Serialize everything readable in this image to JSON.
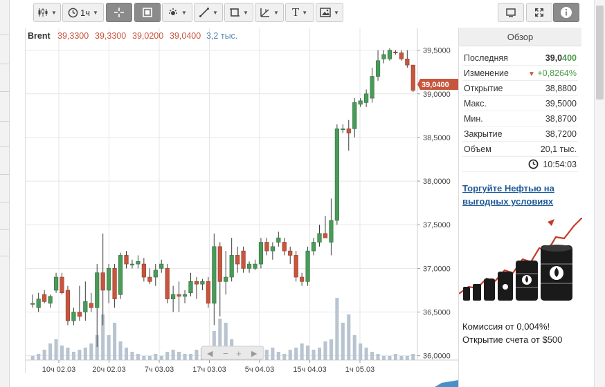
{
  "toolbar": {
    "interval_label": "1ч",
    "text_tool_label": "T"
  },
  "legend": {
    "symbol": "Brent",
    "open": "39,3300",
    "high": "39,3300",
    "low": "39,0200",
    "close": "39,0400",
    "volume": "3,2 тыс."
  },
  "price_axis": {
    "ticks": [
      "39,5000",
      "39,0000",
      "38,5000",
      "38,0000",
      "37,5000",
      "37,0000",
      "36,5000",
      "36,0000"
    ],
    "last_price_label": "39,0400"
  },
  "time_axis": {
    "ticks": [
      "10ч 02.03",
      "20ч 02.03",
      "7ч 03.03",
      "17ч 03.03",
      "5ч 04.03",
      "15ч 04.03",
      "1ч 05.03"
    ]
  },
  "overview": {
    "title": "Обзор",
    "rows": [
      {
        "label": "Последняя",
        "value_main": "39,0",
        "value_accent": "400"
      },
      {
        "label": "Изменение",
        "value": "+0,8264%"
      },
      {
        "label": "Открытие",
        "value": "38,8800"
      },
      {
        "label": "Макс.",
        "value": "39,5000"
      },
      {
        "label": "Мин.",
        "value": "38,8700"
      },
      {
        "label": "Закрытие",
        "value": "38,7200"
      },
      {
        "label": "Объем",
        "value": "20,1 тыс."
      }
    ],
    "time": "10:54:03"
  },
  "promo": {
    "link_text": "Торгуйте Нефтью на выгодных условиях",
    "line1": "Комиссия от 0,004%!",
    "line2": "Открытие счета от $500"
  },
  "colors": {
    "up": "#4a9a5a",
    "down": "#c8553d",
    "grid": "#e6e6e6",
    "accent_link": "#1e5b99"
  },
  "chart_data": {
    "type": "candlestick",
    "title": "Brent",
    "ylim": [
      35.95,
      39.6
    ],
    "y_ticks": [
      36.0,
      36.5,
      37.0,
      37.5,
      38.0,
      38.5,
      39.0,
      39.5
    ],
    "x_tick_labels": [
      "10ч 02.03",
      "20ч 02.03",
      "7ч 03.03",
      "17ч 03.03",
      "5ч 04.03",
      "15ч 04.03",
      "1ч 05.03"
    ],
    "candles": [
      {
        "o": 36.6,
        "h": 36.7,
        "l": 36.55,
        "c": 36.6
      },
      {
        "o": 36.55,
        "h": 36.72,
        "l": 36.5,
        "c": 36.65
      },
      {
        "o": 36.7,
        "h": 36.75,
        "l": 36.6,
        "c": 36.62
      },
      {
        "o": 36.6,
        "h": 36.7,
        "l": 36.55,
        "c": 36.68
      },
      {
        "o": 36.75,
        "h": 36.95,
        "l": 36.72,
        "c": 36.9
      },
      {
        "o": 36.9,
        "h": 36.95,
        "l": 36.7,
        "c": 36.72
      },
      {
        "o": 36.75,
        "h": 36.8,
        "l": 36.35,
        "c": 36.4
      },
      {
        "o": 36.4,
        "h": 36.55,
        "l": 36.35,
        "c": 36.5
      },
      {
        "o": 36.5,
        "h": 36.8,
        "l": 36.4,
        "c": 36.45
      },
      {
        "o": 36.5,
        "h": 36.85,
        "l": 36.4,
        "c": 36.62
      },
      {
        "o": 36.6,
        "h": 36.72,
        "l": 36.5,
        "c": 36.55
      },
      {
        "o": 36.55,
        "h": 37.05,
        "l": 36.1,
        "c": 36.95
      },
      {
        "o": 36.95,
        "h": 37.4,
        "l": 36.35,
        "c": 36.75
      },
      {
        "o": 36.75,
        "h": 37.05,
        "l": 36.6,
        "c": 37.0
      },
      {
        "o": 37.0,
        "h": 37.05,
        "l": 36.55,
        "c": 36.65
      },
      {
        "o": 36.7,
        "h": 37.18,
        "l": 36.65,
        "c": 37.15
      },
      {
        "o": 37.15,
        "h": 37.2,
        "l": 37.0,
        "c": 37.05
      },
      {
        "o": 37.05,
        "h": 37.1,
        "l": 37.0,
        "c": 37.05
      },
      {
        "o": 37.05,
        "h": 37.15,
        "l": 37.0,
        "c": 37.08
      },
      {
        "o": 37.05,
        "h": 37.12,
        "l": 36.85,
        "c": 36.9
      },
      {
        "o": 36.9,
        "h": 37.0,
        "l": 36.82,
        "c": 36.85
      },
      {
        "o": 36.9,
        "h": 37.05,
        "l": 36.8,
        "c": 36.98
      },
      {
        "o": 37.0,
        "h": 37.1,
        "l": 36.95,
        "c": 37.05
      },
      {
        "o": 37.0,
        "h": 37.05,
        "l": 36.6,
        "c": 36.65
      },
      {
        "o": 36.65,
        "h": 36.8,
        "l": 36.5,
        "c": 36.7
      },
      {
        "o": 36.7,
        "h": 36.85,
        "l": 36.5,
        "c": 36.68
      },
      {
        "o": 36.68,
        "h": 36.75,
        "l": 36.6,
        "c": 36.7
      },
      {
        "o": 36.72,
        "h": 36.95,
        "l": 36.68,
        "c": 36.85
      },
      {
        "o": 36.85,
        "h": 36.9,
        "l": 36.65,
        "c": 36.82
      },
      {
        "o": 36.82,
        "h": 36.88,
        "l": 36.75,
        "c": 36.85
      },
      {
        "o": 36.85,
        "h": 36.9,
        "l": 36.55,
        "c": 36.6
      },
      {
        "o": 36.6,
        "h": 37.4,
        "l": 36.35,
        "c": 37.25
      },
      {
        "o": 37.25,
        "h": 37.3,
        "l": 36.45,
        "c": 36.85
      },
      {
        "o": 36.85,
        "h": 37.2,
        "l": 36.7,
        "c": 36.9
      },
      {
        "o": 36.9,
        "h": 37.35,
        "l": 36.85,
        "c": 37.15
      },
      {
        "o": 37.15,
        "h": 37.25,
        "l": 36.95,
        "c": 37.05
      },
      {
        "o": 37.2,
        "h": 37.25,
        "l": 36.95,
        "c": 37.0
      },
      {
        "o": 37.0,
        "h": 37.08,
        "l": 36.95,
        "c": 37.05
      },
      {
        "o": 37.0,
        "h": 37.1,
        "l": 36.98,
        "c": 37.05
      },
      {
        "o": 37.05,
        "h": 37.35,
        "l": 37.0,
        "c": 37.3
      },
      {
        "o": 37.3,
        "h": 37.35,
        "l": 37.15,
        "c": 37.2
      },
      {
        "o": 37.2,
        "h": 37.3,
        "l": 37.1,
        "c": 37.25
      },
      {
        "o": 37.3,
        "h": 37.42,
        "l": 37.25,
        "c": 37.35
      },
      {
        "o": 37.3,
        "h": 37.35,
        "l": 37.15,
        "c": 37.2
      },
      {
        "o": 37.2,
        "h": 37.25,
        "l": 37.05,
        "c": 37.15
      },
      {
        "o": 37.15,
        "h": 37.2,
        "l": 36.85,
        "c": 36.9
      },
      {
        "o": 36.9,
        "h": 36.95,
        "l": 36.8,
        "c": 36.85
      },
      {
        "o": 36.85,
        "h": 37.25,
        "l": 36.8,
        "c": 37.2
      },
      {
        "o": 37.2,
        "h": 37.35,
        "l": 37.15,
        "c": 37.3
      },
      {
        "o": 37.3,
        "h": 37.5,
        "l": 37.25,
        "c": 37.4
      },
      {
        "o": 37.4,
        "h": 37.6,
        "l": 37.35,
        "c": 37.35
      },
      {
        "o": 37.3,
        "h": 37.8,
        "l": 37.15,
        "c": 37.55
      },
      {
        "o": 37.55,
        "h": 38.65,
        "l": 37.5,
        "c": 38.6
      },
      {
        "o": 38.6,
        "h": 38.65,
        "l": 38.55,
        "c": 38.6
      },
      {
        "o": 38.6,
        "h": 38.7,
        "l": 38.35,
        "c": 38.55
      },
      {
        "o": 38.6,
        "h": 38.95,
        "l": 38.5,
        "c": 38.9
      },
      {
        "o": 38.88,
        "h": 38.95,
        "l": 38.85,
        "c": 38.92
      },
      {
        "o": 38.9,
        "h": 39.05,
        "l": 38.85,
        "c": 39.0
      },
      {
        "o": 38.95,
        "h": 39.3,
        "l": 38.9,
        "c": 39.2
      },
      {
        "o": 39.2,
        "h": 39.5,
        "l": 39.15,
        "c": 39.38
      },
      {
        "o": 39.4,
        "h": 39.5,
        "l": 39.35,
        "c": 39.45
      },
      {
        "o": 39.4,
        "h": 39.52,
        "l": 39.38,
        "c": 39.5
      },
      {
        "o": 39.48,
        "h": 39.5,
        "l": 39.45,
        "c": 39.47
      },
      {
        "o": 39.47,
        "h": 39.5,
        "l": 39.38,
        "c": 39.4
      },
      {
        "o": 39.4,
        "h": 39.5,
        "l": 39.3,
        "c": 39.33
      },
      {
        "o": 39.33,
        "h": 39.33,
        "l": 39.02,
        "c": 39.04
      }
    ],
    "volume_bars": [
      2,
      3,
      5,
      8,
      10,
      7,
      6,
      4,
      5,
      6,
      8,
      12,
      22,
      12,
      18,
      9,
      6,
      4,
      3,
      2,
      2,
      3,
      2,
      4,
      5,
      4,
      3,
      3,
      5,
      6,
      5,
      14,
      20,
      18,
      10,
      6,
      5,
      4,
      3,
      3,
      5,
      6,
      4,
      3,
      5,
      6,
      8,
      7,
      5,
      6,
      9,
      10,
      30,
      18,
      22,
      12,
      8,
      6,
      4,
      3,
      2,
      2,
      3,
      2,
      2,
      3
    ]
  }
}
